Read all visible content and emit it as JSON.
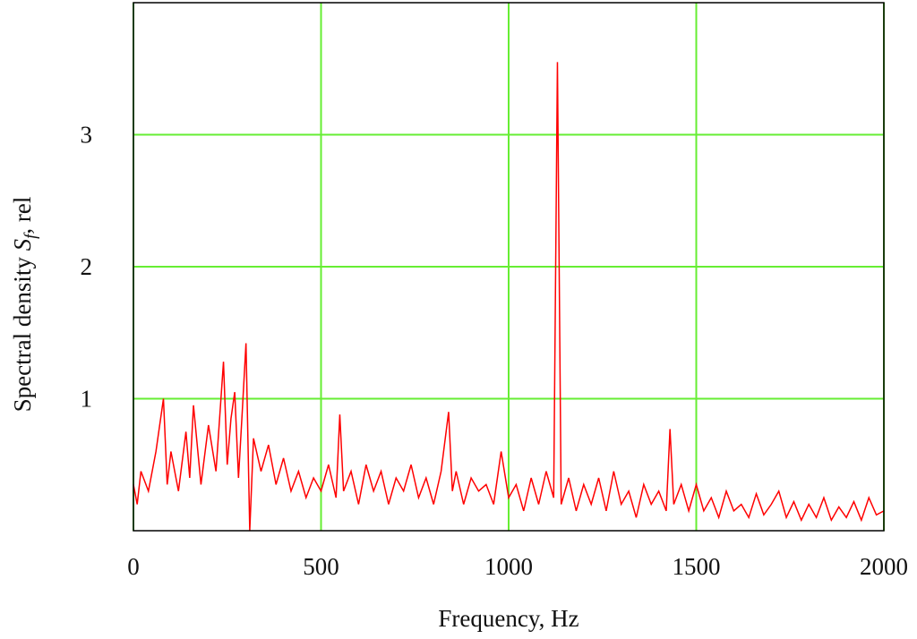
{
  "chart_data": {
    "type": "line",
    "xlabel": "Frequency, Hz",
    "ylabel": {
      "text": "Spectral density ",
      "symbol": "S",
      "subscript": "f",
      "suffix": ", rel"
    },
    "x": [
      0,
      10,
      20,
      40,
      60,
      80,
      90,
      100,
      120,
      140,
      150,
      160,
      180,
      200,
      220,
      240,
      250,
      260,
      270,
      280,
      290,
      300,
      310,
      320,
      340,
      360,
      380,
      400,
      420,
      440,
      460,
      480,
      500,
      520,
      540,
      550,
      560,
      580,
      600,
      620,
      640,
      660,
      680,
      700,
      720,
      740,
      760,
      780,
      800,
      820,
      840,
      850,
      860,
      880,
      900,
      920,
      940,
      960,
      980,
      1000,
      1020,
      1040,
      1060,
      1080,
      1100,
      1120,
      1130,
      1140,
      1160,
      1180,
      1200,
      1220,
      1240,
      1260,
      1280,
      1300,
      1320,
      1340,
      1360,
      1380,
      1400,
      1420,
      1430,
      1440,
      1460,
      1480,
      1500,
      1520,
      1540,
      1560,
      1580,
      1600,
      1620,
      1640,
      1660,
      1680,
      1700,
      1720,
      1740,
      1760,
      1780,
      1800,
      1820,
      1840,
      1860,
      1880,
      1900,
      1920,
      1940,
      1960,
      1980,
      2000
    ],
    "series": [
      {
        "name": "Spectral density",
        "color": "#ff0000",
        "values": [
          0.35,
          0.2,
          0.45,
          0.3,
          0.6,
          1.0,
          0.35,
          0.6,
          0.3,
          0.75,
          0.4,
          0.95,
          0.35,
          0.8,
          0.45,
          1.28,
          0.5,
          0.85,
          1.05,
          0.4,
          0.9,
          1.42,
          0.0,
          0.7,
          0.45,
          0.65,
          0.35,
          0.55,
          0.3,
          0.45,
          0.25,
          0.4,
          0.3,
          0.5,
          0.25,
          0.88,
          0.3,
          0.45,
          0.2,
          0.5,
          0.3,
          0.45,
          0.2,
          0.4,
          0.3,
          0.5,
          0.25,
          0.4,
          0.2,
          0.45,
          0.9,
          0.3,
          0.45,
          0.2,
          0.4,
          0.3,
          0.35,
          0.2,
          0.6,
          0.25,
          0.35,
          0.15,
          0.4,
          0.2,
          0.45,
          0.25,
          3.55,
          0.2,
          0.4,
          0.15,
          0.35,
          0.2,
          0.4,
          0.15,
          0.45,
          0.2,
          0.3,
          0.1,
          0.35,
          0.2,
          0.3,
          0.15,
          0.77,
          0.2,
          0.35,
          0.15,
          0.35,
          0.15,
          0.25,
          0.1,
          0.3,
          0.15,
          0.2,
          0.1,
          0.28,
          0.12,
          0.2,
          0.3,
          0.1,
          0.22,
          0.08,
          0.2,
          0.1,
          0.25,
          0.08,
          0.18,
          0.1,
          0.22,
          0.08,
          0.25,
          0.12,
          0.15
        ]
      }
    ],
    "xlim": [
      0,
      2000
    ],
    "xticks": [
      0,
      500,
      1000,
      1500,
      2000
    ],
    "ylim": [
      0,
      4
    ],
    "yticks": [
      1,
      2,
      3
    ],
    "grid": true,
    "grid_color": "#66ee33"
  }
}
